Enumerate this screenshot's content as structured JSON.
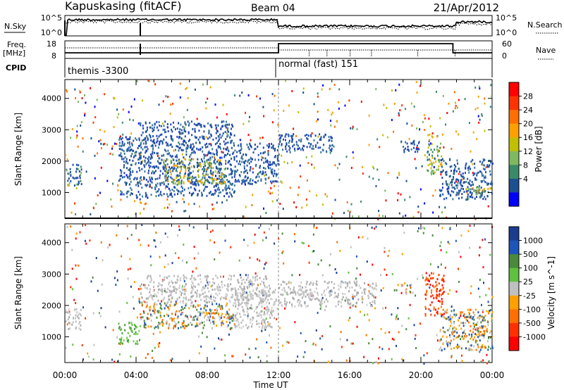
{
  "header": {
    "station": "Kapuskasing (fitACF)",
    "beam": "Beam 04",
    "date": "21/Apr/2012"
  },
  "top_panels": {
    "nsky_label": "N.Sky",
    "nsky_ticks": [
      "10^5",
      "10^0"
    ],
    "nsearch_label": "N.Search",
    "nsearch_ticks": [
      "10^5",
      "10^0"
    ],
    "freq_label_1": "Freq.",
    "freq_label_2": "[MHz]",
    "freq_ticks": [
      "18",
      "8"
    ],
    "nave_label": "Nave",
    "nave_ticks": [
      "60",
      "0"
    ],
    "cpid_label": "CPID",
    "cpid_segments": [
      {
        "name": "themis -3300",
        "start_hour": 0
      },
      {
        "name": "normal (fast) 151",
        "start_hour": 12
      }
    ]
  },
  "x_axis": {
    "label": "Time UT",
    "ticks": [
      "00:00",
      "04:00",
      "08:00",
      "12:00",
      "16:00",
      "20:00",
      "00:00"
    ]
  },
  "chart_data": [
    {
      "type": "heatmap",
      "title": "Power",
      "ylabel": "Slant Range [km]",
      "xlim_hours": [
        0,
        24
      ],
      "ylim_km": [
        180,
        4600
      ],
      "yticks": [
        1000,
        2000,
        3000,
        4000
      ],
      "colorbar": {
        "label": "Power [dB]",
        "ticks": [
          "28",
          "24",
          "20",
          "16",
          "12",
          "8",
          "4"
        ],
        "colors": [
          "#ff0000",
          "#ff3300",
          "#ff7000",
          "#ffa000",
          "#c0c000",
          "#80b860",
          "#3a8a6a",
          "#1d5090",
          "#0000ff"
        ]
      },
      "regions": [
        {
          "t0": 0.0,
          "t1": 0.9,
          "r0": 1250,
          "r1": 1950,
          "level": "mid"
        },
        {
          "t0": 3.0,
          "t1": 4.2,
          "r0": 800,
          "r1": 2800,
          "level": "low"
        },
        {
          "t0": 4.2,
          "t1": 9.5,
          "r0": 900,
          "r1": 3300,
          "level": "low"
        },
        {
          "t0": 5.5,
          "t1": 9.0,
          "r0": 1300,
          "r1": 2100,
          "level": "high"
        },
        {
          "t0": 9.5,
          "t1": 12.0,
          "r0": 1300,
          "r1": 2600,
          "level": "low"
        },
        {
          "t0": 12.0,
          "t1": 15.0,
          "r0": 2300,
          "r1": 2900,
          "level": "low"
        },
        {
          "t0": 18.8,
          "t1": 20.0,
          "r0": 2300,
          "r1": 2700,
          "level": "low"
        },
        {
          "t0": 20.3,
          "t1": 21.2,
          "r0": 1600,
          "r1": 2900,
          "level": "high"
        },
        {
          "t0": 21.0,
          "t1": 24.0,
          "r0": 800,
          "r1": 2100,
          "level": "low"
        },
        {
          "t0": 22.5,
          "t1": 24.0,
          "r0": 950,
          "r1": 1250,
          "level": "high"
        }
      ]
    },
    {
      "type": "heatmap",
      "title": "Velocity",
      "ylabel": "Slant Range [km]",
      "xlim_hours": [
        0,
        24
      ],
      "ylim_km": [
        180,
        4600
      ],
      "yticks": [
        1000,
        2000,
        3000,
        4000
      ],
      "colorbar": {
        "label": "Velocity [m s^-1]",
        "ticks": [
          "1000",
          "500",
          "100",
          "25",
          "-25",
          "-100",
          "-500",
          "-1000"
        ],
        "colors": [
          "#1c3c90",
          "#1d55b8",
          "#4a8a3c",
          "#60c040",
          "#c0c0c0",
          "#ffa000",
          "#ff7000",
          "#ff3000",
          "#ff0000"
        ]
      },
      "regions": [
        {
          "t0": 0.0,
          "t1": 0.9,
          "r0": 1250,
          "r1": 1950,
          "level": "ground"
        },
        {
          "t0": 3.0,
          "t1": 4.2,
          "r0": 800,
          "r1": 1500,
          "level": "toward"
        },
        {
          "t0": 4.2,
          "t1": 9.5,
          "r0": 1300,
          "r1": 2100,
          "level": "away"
        },
        {
          "t0": 4.2,
          "t1": 11.5,
          "r0": 2100,
          "r1": 3000,
          "level": "ground"
        },
        {
          "t0": 9.5,
          "t1": 12.0,
          "r0": 1300,
          "r1": 2600,
          "level": "ground"
        },
        {
          "t0": 12.0,
          "t1": 17.5,
          "r0": 2000,
          "r1": 2800,
          "level": "ground"
        },
        {
          "t0": 18.8,
          "t1": 19.6,
          "r0": 2400,
          "r1": 2700,
          "level": "away"
        },
        {
          "t0": 20.2,
          "t1": 21.3,
          "r0": 1700,
          "r1": 3100,
          "level": "strong-away"
        },
        {
          "t0": 21.0,
          "t1": 24.0,
          "r0": 600,
          "r1": 1900,
          "level": "away"
        }
      ]
    }
  ]
}
